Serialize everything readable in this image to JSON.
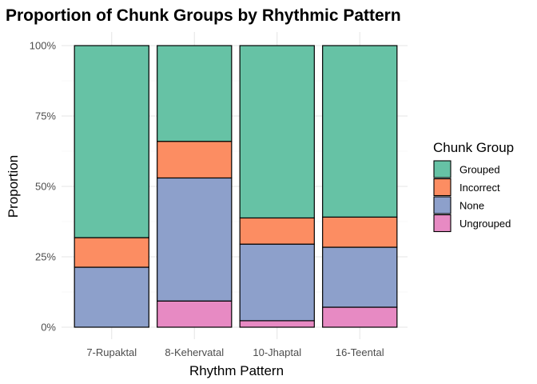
{
  "chart_data": {
    "type": "bar",
    "stacked": true,
    "title": "Proportion of Chunk Groups by Rhythmic Pattern",
    "xlabel": "Rhythm Pattern",
    "ylabel": "Proportion",
    "ylim": [
      0,
      1
    ],
    "yticks": [
      0,
      0.25,
      0.5,
      0.75,
      1.0
    ],
    "ytick_labels": [
      "0%",
      "25%",
      "50%",
      "75%",
      "100%"
    ],
    "grid": true,
    "categories": [
      "7-Rupaktal",
      "8-Kehervatal",
      "10-Jhaptal",
      "16-Teental"
    ],
    "legend": {
      "title": "Chunk Group",
      "position": "right"
    },
    "series": [
      {
        "name": "Ungrouped",
        "color": "#E78AC3",
        "values": [
          0.0,
          0.093,
          0.023,
          0.071
        ]
      },
      {
        "name": "None",
        "color": "#8DA0CB",
        "values": [
          0.213,
          0.437,
          0.272,
          0.213
        ]
      },
      {
        "name": "Incorrect",
        "color": "#FC8D62",
        "values": [
          0.105,
          0.13,
          0.093,
          0.107
        ]
      },
      {
        "name": "Grouped",
        "color": "#66C2A5",
        "values": [
          0.682,
          0.34,
          0.612,
          0.609
        ]
      }
    ],
    "legend_order": [
      "Grouped",
      "Incorrect",
      "None",
      "Ungrouped"
    ]
  }
}
